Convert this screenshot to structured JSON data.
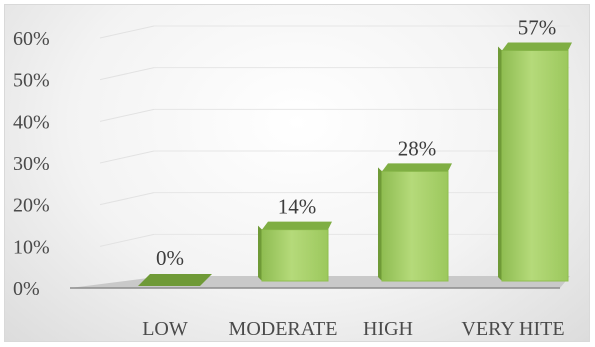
{
  "chart_data": {
    "type": "bar",
    "style": "3d-column",
    "categories": [
      "LOW",
      "MODERATE",
      "HIGH",
      "VERY HITE"
    ],
    "values": [
      0,
      14,
      28,
      57
    ],
    "data_labels": [
      "0%",
      "14%",
      "28%",
      "57%"
    ],
    "y_ticks": [
      "0%",
      "10%",
      "20%",
      "30%",
      "40%",
      "50%",
      "60%"
    ],
    "ylim": [
      0,
      60
    ],
    "title": "",
    "xlabel": "",
    "ylabel": "",
    "grid": true,
    "legend": "none",
    "colors": {
      "bar_front": "#a9d16c",
      "bar_side": "#6f9a37",
      "bar_top": "#7fae43",
      "floor": "#c9c9c9"
    }
  }
}
